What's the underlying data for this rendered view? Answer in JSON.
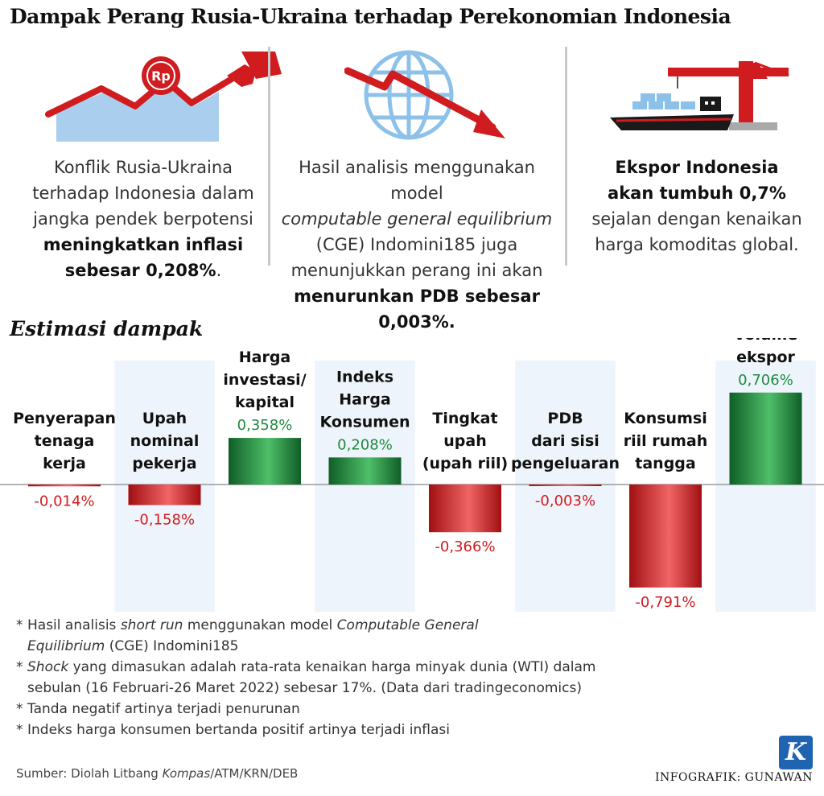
{
  "title": "Dampak Perang Rusia-Ukraina terhadap Perekonomian Indonesia",
  "colors": {
    "positive": "#1d8a3d",
    "negative": "#d01c1f",
    "text": "#222222",
    "divider": "#c9c9c9",
    "column_band": "#eef4fb"
  },
  "panels": [
    {
      "icon": "inflation-chart-fuel-nozzle-icon",
      "badge": "Rp",
      "text_1": "Konflik Rusia-Ukraina",
      "text_2": "terhadap Indonesia dalam",
      "text_3": "jangka pendek berpotensi",
      "bold_1": "meningkatkan inflasi",
      "bold_2": "sebesar 0,208%",
      "tail": "."
    },
    {
      "icon": "globe-down-arrow-icon",
      "text_1": "Hasil analisis menggunakan model",
      "italic_1": "computable general equilibrium",
      "text_2": "(CGE) Indomini185 juga",
      "text_3": "menunjukkan perang ini akan",
      "bold_1": "menurunkan PDB sebesar",
      "bold_2": "0,003%."
    },
    {
      "icon": "cargo-ship-crane-icon",
      "bold_1": "Ekspor Indonesia",
      "bold_2": "akan tumbuh 0,7%",
      "text_1": "sejalan dengan kenaikan",
      "text_2": "harga komoditas global."
    }
  ],
  "section_title": "Estimasi dampak",
  "chart_data": {
    "type": "bar",
    "title": "Estimasi dampak",
    "categories": [
      [
        "Penyerapan",
        "tenaga",
        "kerja"
      ],
      [
        "Upah",
        "nominal",
        "pekerja"
      ],
      [
        "Harga",
        "investasi/",
        "kapital"
      ],
      [
        "Indeks",
        "Harga",
        "Konsumen"
      ],
      [
        "Tingkat",
        "upah",
        "(upah riil)"
      ],
      [
        "PDB",
        "dari sisi",
        "pengeluaran"
      ],
      [
        "Konsumsi",
        "riil rumah",
        "tangga"
      ],
      [
        "Volume",
        "ekspor"
      ]
    ],
    "values": [
      -0.014,
      -0.158,
      0.358,
      0.208,
      -0.366,
      -0.003,
      -0.791,
      0.706
    ],
    "value_labels": [
      "-0,014%",
      "-0,158%",
      "0,358%",
      "0,208%",
      "-0,366%",
      "-0,003%",
      "-0,791%",
      "0,706%"
    ],
    "ylim": [
      -0.791,
      0.706
    ],
    "grid": false,
    "legend": "none",
    "xlabel": "",
    "ylabel": ""
  },
  "notes": [
    {
      "pre": "Hasil analisis ",
      "italic": "short run",
      "mid": " menggunakan model ",
      "italic2": "Computable General",
      "line2_italic": "Equilibrium",
      "line2_rest": " (CGE) Indomini185"
    },
    {
      "italic": "Shock",
      "rest": " yang dimasukan adalah rata-rata kenaikan harga minyak dunia (WTI) dalam",
      "line2": "sebulan (16 Februari-26 Maret 2022) sebesar 17%. (Data dari tradingeconomics)"
    },
    {
      "text": "Tanda negatif artinya terjadi penurunan"
    },
    {
      "text": "Indeks harga konsumen bertanda positif artinya terjadi inflasi"
    }
  ],
  "note_marker": "*",
  "source": {
    "pre": "Sumber: Diolah Litbang ",
    "italic": "Kompas",
    "post": "/ATM/KRN/DEB"
  },
  "credit": "INFOGRAFIK: GUNAWAN",
  "logo_letter": "K"
}
